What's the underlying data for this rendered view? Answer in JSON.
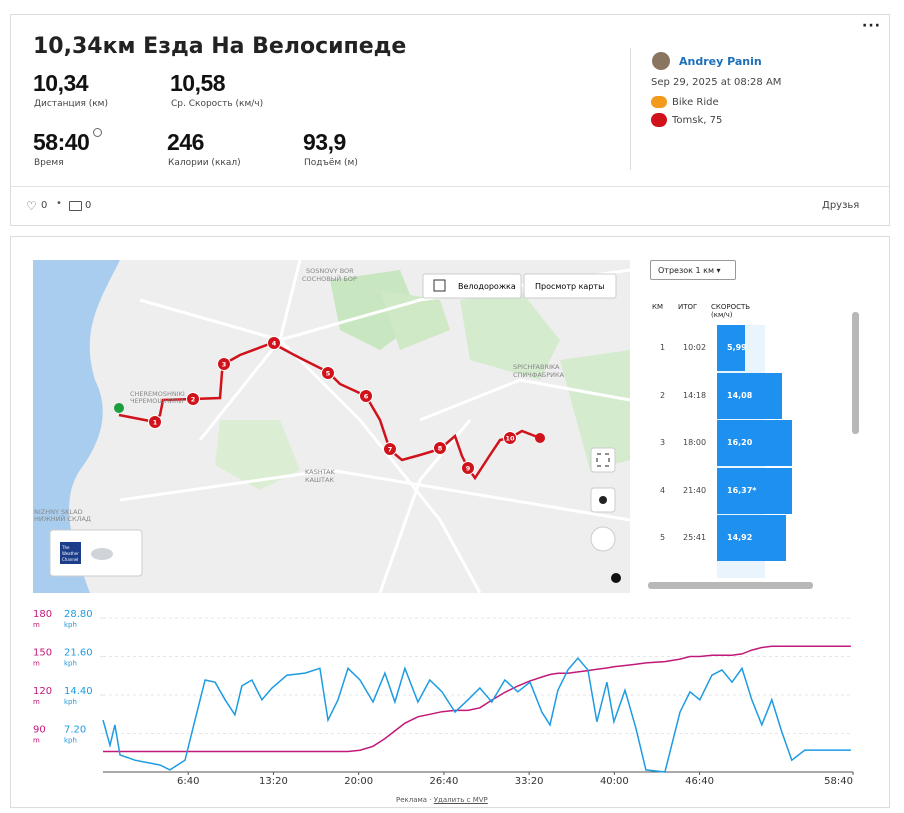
{
  "header": {
    "title": "10,34км Езда На Велосипеде",
    "stats": [
      {
        "value": "10,34",
        "label": "Дистанция (км)"
      },
      {
        "value": "10,58",
        "label": "Ср. Скорость (км/ч)"
      },
      {
        "value": "58:40",
        "label": "Время"
      },
      {
        "value": "246",
        "label": "Калории (ккал)"
      },
      {
        "value": "93,9",
        "label": "Подъём (м)"
      }
    ],
    "user": "Andrey Panin",
    "date": "Sep 29, 2025 at 08:28 AM",
    "activity": "Bike Ride",
    "location": "Tomsk, 75"
  },
  "social": {
    "likes": "0",
    "comments": "0",
    "visibility": "Друзья"
  },
  "map": {
    "labels": [
      "SOSNOVY BOR",
      "СОСНОВЫЙ БОР",
      "CHEREMOSHNIKI",
      "ЧЕРЕМОШНИКИ",
      "SPICHFABRIKA",
      "СПИЧФАБРИКА",
      "KASHTAK",
      "КАШТАК",
      "NIZHNY SKLAD",
      "НИЖНИЙ СКЛАД"
    ],
    "bike_lanes": "Велодорожка",
    "map_view": "Просмотр карты",
    "weather": [
      "The",
      "Weather",
      "Channel"
    ],
    "markers": [
      "1",
      "2",
      "3",
      "4",
      "5",
      "6",
      "7",
      "8",
      "9",
      "10"
    ]
  },
  "splits": {
    "selector": "Отрезок 1 км",
    "columns": [
      "КМ",
      "ИТОГ",
      "СКОРОСТЬ (км/ч)"
    ],
    "km": [
      "1",
      "2",
      "3",
      "4",
      "5"
    ],
    "total": [
      "10:02",
      "14:18",
      "18:00",
      "21:40",
      "25:41"
    ],
    "speed": [
      5.99,
      14.08,
      16.2,
      16.37,
      14.92
    ],
    "speed_labels": [
      "5,99",
      "14,08",
      "16,20",
      "16,37*",
      "14,92"
    ]
  },
  "chart_data": {
    "type": "line",
    "x": [
      0,
      33,
      56,
      80,
      150,
      267,
      314,
      385,
      432,
      479,
      526,
      573,
      619,
      652,
      699,
      746,
      793,
      863,
      948,
      1018,
      1056,
      1103,
      1150,
      1206,
      1267,
      1323,
      1370,
      1417,
      1478,
      1534,
      1591,
      1652,
      1713,
      1769,
      1825,
      1886,
      1947,
      2004,
      2060,
      2098,
      2135,
      2182,
      2229,
      2276,
      2318,
      2365,
      2398,
      2450,
      2501,
      2548,
      2637,
      2708,
      2755,
      2801,
      2858,
      2905,
      2952,
      2999,
      3045,
      3092,
      3139,
      3186,
      3233,
      3294,
      3510
    ],
    "xlim": [
      0,
      3520
    ],
    "xticks": [
      {
        "value": 400,
        "label": "6:40"
      },
      {
        "value": 800,
        "label": "13:20"
      },
      {
        "value": 1200,
        "label": "20:00"
      },
      {
        "value": 1600,
        "label": "26:40"
      },
      {
        "value": 2000,
        "label": "33:20"
      },
      {
        "value": 2400,
        "label": "40:00"
      },
      {
        "value": 2800,
        "label": "46:40"
      },
      {
        "value": 3520,
        "label": "58:40"
      }
    ],
    "ylim": [
      60,
      180
    ],
    "yticks": [
      90,
      120,
      150,
      180
    ],
    "y_unit": "m",
    "y2lim": [
      0,
      28.8
    ],
    "y2ticks": [
      {
        "value": 7.2,
        "label": "7.20"
      },
      {
        "value": 14.4,
        "label": "14.40"
      },
      {
        "value": 21.6,
        "label": "21.60"
      },
      {
        "value": 28.8,
        "label": "28.80"
      }
    ],
    "y2_unit": "kph",
    "grid": true,
    "series": [
      {
        "color": "#c2187a",
        "values": [
          76,
          76,
          76,
          76,
          76,
          76,
          76,
          76,
          76,
          76,
          76,
          76,
          76,
          76,
          76,
          76,
          76,
          76,
          76,
          76,
          76,
          76,
          76,
          77,
          80,
          86,
          92,
          98,
          103,
          105,
          107,
          108,
          108,
          110,
          116,
          122,
          127,
          131,
          134,
          136,
          137,
          137,
          138,
          139,
          140,
          141,
          142,
          143,
          144,
          145,
          146,
          148,
          150,
          150,
          151,
          151,
          151,
          152,
          155,
          157,
          158,
          158,
          158,
          158,
          158
        ]
      },
      {
        "color": "#1d9be2",
        "axis": "y2",
        "values": [
          9.7,
          5.0,
          8.8,
          3.2,
          2.2,
          1.3,
          0.4,
          2.2,
          9.7,
          17.2,
          16.8,
          13.5,
          10.7,
          16.1,
          17.2,
          13.5,
          15.7,
          18.1,
          18.5,
          19.4,
          9.7,
          13.5,
          19.4,
          17.2,
          13.1,
          18.5,
          13.1,
          19.4,
          13.1,
          17.2,
          15.0,
          11.2,
          13.5,
          15.7,
          13.1,
          17.2,
          15.0,
          16.8,
          11.2,
          8.8,
          15.3,
          19.1,
          21.3,
          19.1,
          9.4,
          16.8,
          9.4,
          15.3,
          8.2,
          0.4,
          0,
          11.2,
          15.0,
          13.5,
          18.1,
          19.1,
          16.8,
          19.4,
          13.5,
          8.8,
          13.5,
          7.5,
          2.2,
          4.1,
          4.1
        ]
      }
    ]
  },
  "ad": {
    "label": "Реклама ·",
    "link": "Удалить с MVP"
  }
}
